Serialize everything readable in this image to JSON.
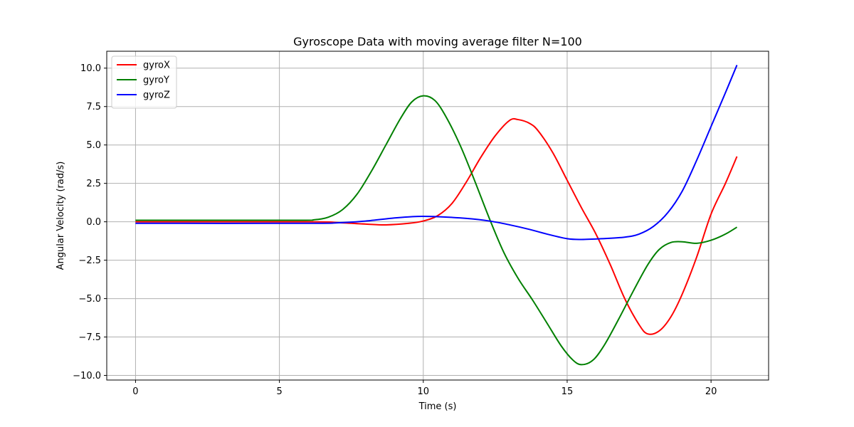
{
  "chart_data": {
    "type": "line",
    "title": "Gyroscope Data with moving average filter N=100",
    "xlabel": "Time (s)",
    "ylabel": "Angular Velocity (rad/s)",
    "xlim": [
      -1.0,
      22.0
    ],
    "ylim": [
      -10.3,
      11.1
    ],
    "xticks": [
      0,
      5,
      10,
      15,
      20
    ],
    "xtick_labels": [
      "0",
      "5",
      "10",
      "15",
      "20"
    ],
    "yticks": [
      10.0,
      7.5,
      5.0,
      2.5,
      0.0,
      -2.5,
      -5.0,
      -7.5,
      -10.0
    ],
    "ytick_labels": [
      "10.0",
      "7.5",
      "5.0",
      "2.5",
      "0.0",
      "−2.5",
      "−5.0",
      "−7.5",
      "−10.0"
    ],
    "grid": true,
    "legend_position": "top-left",
    "series": [
      {
        "name": "gyroX",
        "color": "#ff0000",
        "points": [
          [
            0,
            0.0
          ],
          [
            6,
            0.0
          ],
          [
            7,
            -0.05
          ],
          [
            8,
            -0.15
          ],
          [
            8.7,
            -0.2
          ],
          [
            9.5,
            -0.1
          ],
          [
            10,
            0.05
          ],
          [
            10.5,
            0.4
          ],
          [
            11,
            1.2
          ],
          [
            11.5,
            2.6
          ],
          [
            12,
            4.2
          ],
          [
            12.5,
            5.6
          ],
          [
            13,
            6.6
          ],
          [
            13.3,
            6.65
          ],
          [
            13.7,
            6.4
          ],
          [
            14,
            5.9
          ],
          [
            14.5,
            4.5
          ],
          [
            15,
            2.7
          ],
          [
            15.5,
            0.9
          ],
          [
            16,
            -0.8
          ],
          [
            16.5,
            -2.8
          ],
          [
            17,
            -5.0
          ],
          [
            17.5,
            -6.7
          ],
          [
            17.8,
            -7.3
          ],
          [
            18.2,
            -7.1
          ],
          [
            18.6,
            -6.2
          ],
          [
            19,
            -4.7
          ],
          [
            19.5,
            -2.3
          ],
          [
            20,
            0.5
          ],
          [
            20.5,
            2.5
          ],
          [
            20.9,
            4.25
          ]
        ]
      },
      {
        "name": "gyroY",
        "color": "#008000",
        "points": [
          [
            0,
            0.1
          ],
          [
            5.5,
            0.1
          ],
          [
            6.2,
            0.13
          ],
          [
            6.7,
            0.3
          ],
          [
            7.2,
            0.8
          ],
          [
            7.7,
            1.8
          ],
          [
            8.2,
            3.3
          ],
          [
            8.7,
            5.0
          ],
          [
            9.2,
            6.7
          ],
          [
            9.6,
            7.8
          ],
          [
            10,
            8.2
          ],
          [
            10.4,
            7.9
          ],
          [
            10.8,
            6.8
          ],
          [
            11.3,
            4.9
          ],
          [
            11.8,
            2.6
          ],
          [
            12.3,
            0.2
          ],
          [
            12.8,
            -2.0
          ],
          [
            13.3,
            -3.7
          ],
          [
            13.8,
            -5.1
          ],
          [
            14.3,
            -6.6
          ],
          [
            14.8,
            -8.1
          ],
          [
            15.2,
            -9.0
          ],
          [
            15.5,
            -9.3
          ],
          [
            15.9,
            -9.0
          ],
          [
            16.3,
            -8.0
          ],
          [
            16.8,
            -6.3
          ],
          [
            17.3,
            -4.5
          ],
          [
            17.8,
            -2.8
          ],
          [
            18.2,
            -1.8
          ],
          [
            18.6,
            -1.35
          ],
          [
            19,
            -1.3
          ],
          [
            19.5,
            -1.4
          ],
          [
            20,
            -1.2
          ],
          [
            20.5,
            -0.8
          ],
          [
            20.9,
            -0.35
          ]
        ]
      },
      {
        "name": "gyroZ",
        "color": "#0000ff",
        "points": [
          [
            0,
            -0.1
          ],
          [
            6,
            -0.1
          ],
          [
            7,
            -0.07
          ],
          [
            8,
            0.05
          ],
          [
            9,
            0.25
          ],
          [
            9.8,
            0.35
          ],
          [
            10.5,
            0.33
          ],
          [
            11.5,
            0.22
          ],
          [
            12.3,
            0.05
          ],
          [
            13,
            -0.2
          ],
          [
            13.7,
            -0.5
          ],
          [
            14.3,
            -0.8
          ],
          [
            15,
            -1.1
          ],
          [
            15.5,
            -1.15
          ],
          [
            16.2,
            -1.1
          ],
          [
            17,
            -1.0
          ],
          [
            17.5,
            -0.8
          ],
          [
            18,
            -0.3
          ],
          [
            18.5,
            0.6
          ],
          [
            19,
            2.0
          ],
          [
            19.5,
            4.0
          ],
          [
            20,
            6.2
          ],
          [
            20.5,
            8.4
          ],
          [
            20.9,
            10.2
          ]
        ]
      }
    ]
  }
}
